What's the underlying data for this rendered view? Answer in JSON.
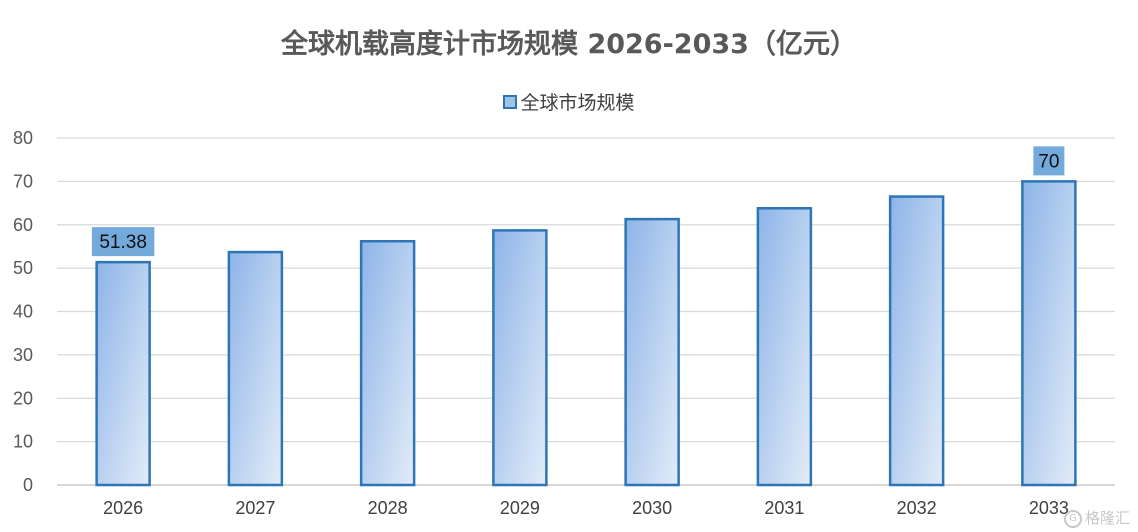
{
  "chart_data": {
    "type": "bar",
    "title": "全球机载高度计市场规模 2026-2033（亿元）",
    "categories": [
      "2026",
      "2027",
      "2028",
      "2029",
      "2030",
      "2031",
      "2032",
      "2033"
    ],
    "series": [
      {
        "name": "全球市场规模",
        "values": [
          51.38,
          53.7,
          56.2,
          58.7,
          61.3,
          63.8,
          66.5,
          70
        ]
      }
    ],
    "data_labels": {
      "0": "51.38",
      "7": "70"
    },
    "y_ticks": [
      "0",
      "10",
      "20",
      "30",
      "40",
      "50",
      "60",
      "70",
      "80"
    ],
    "ylim": [
      0,
      80
    ],
    "grid": true,
    "legend_position": "top-center",
    "colors": {
      "bar_border": "#2e75b6",
      "bar_fill_top": "#8db4e8",
      "bar_fill_bottom": "#e3ecf8",
      "label_bg": "#74a9dc",
      "grid": "#d9d9d9"
    }
  },
  "watermark": {
    "text": "格隆汇",
    "icon": "G-logo-icon"
  }
}
